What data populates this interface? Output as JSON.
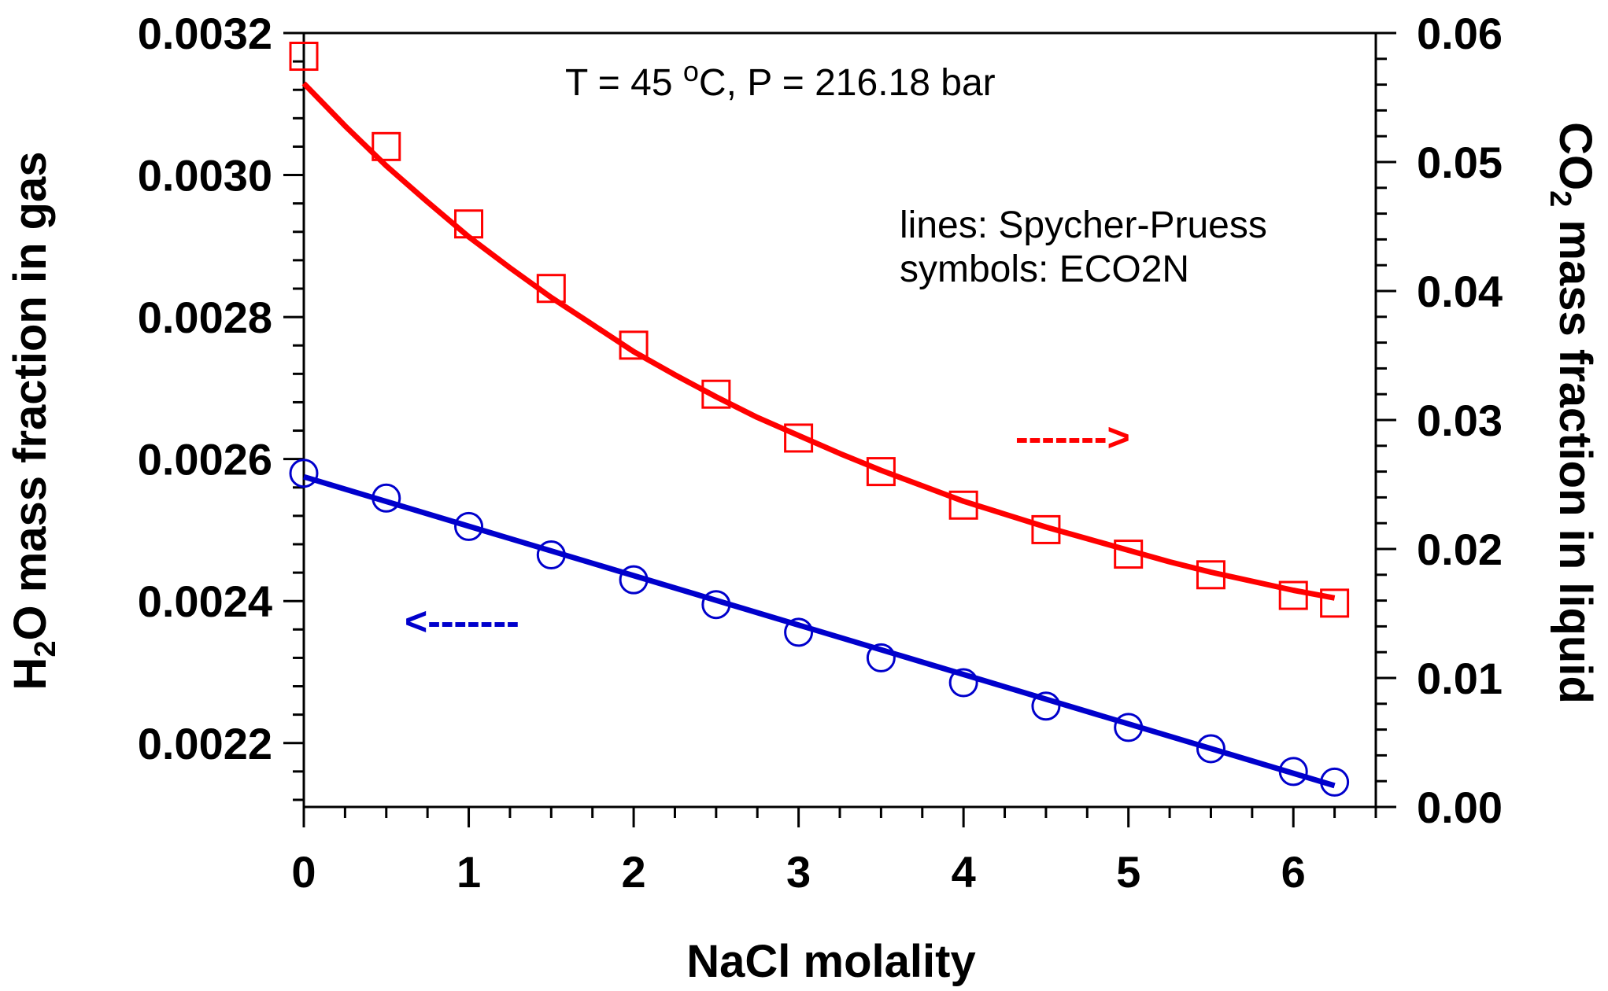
{
  "chart_data": {
    "type": "line",
    "xlabel": "NaCl molality",
    "xlim": [
      0,
      6.5
    ],
    "xticks": [
      "0",
      "1",
      "2",
      "3",
      "4",
      "5",
      "6"
    ],
    "ylabel_left": {
      "pre": "H",
      "sub": "2",
      "post": "O mass fraction in gas"
    },
    "ylim_left": [
      0.00211,
      0.0032
    ],
    "yticks_left": [
      "0.0022",
      "0.0024",
      "0.0026",
      "0.0028",
      "0.0030",
      "0.0032"
    ],
    "ylabel_right": {
      "pre": "CO",
      "sub": "2",
      "post": " mass fraction in liquid"
    },
    "ylim_right": [
      0.0,
      0.06
    ],
    "yticks_right": [
      "0.00",
      "0.01",
      "0.02",
      "0.03",
      "0.04",
      "0.05",
      "0.06"
    ],
    "annotation": {
      "pre": "T = 45 ",
      "sup": "o",
      "post": "C, P = 216.18 bar"
    },
    "legend_note": [
      "lines: Spycher-Pruess",
      "symbols: ECO2N"
    ],
    "arrows": {
      "right": "------->",
      "left": "<-------"
    },
    "series": [
      {
        "axis": "right",
        "color": "#ff0000",
        "marker": "square",
        "line_x": [
          0,
          0.25,
          0.5,
          0.75,
          1,
          1.25,
          1.5,
          1.75,
          2,
          2.25,
          2.5,
          2.75,
          3,
          3.25,
          3.5,
          3.75,
          4,
          4.25,
          4.5,
          4.75,
          5,
          5.25,
          5.5,
          5.75,
          6,
          6.25
        ],
        "line_y": [
          0.0561,
          0.0528,
          0.0497,
          0.0469,
          0.0442,
          0.0418,
          0.0395,
          0.0374,
          0.0353,
          0.0335,
          0.0318,
          0.0302,
          0.0288,
          0.0274,
          0.0261,
          0.0249,
          0.0237,
          0.0227,
          0.0217,
          0.0208,
          0.0199,
          0.019,
          0.0182,
          0.0175,
          0.0168,
          0.0162
        ],
        "points_x": [
          0,
          0.5,
          1,
          1.5,
          2,
          2.5,
          3,
          3.5,
          4,
          4.5,
          5,
          5.5,
          6,
          6.25
        ],
        "points_y": [
          0.0582,
          0.0512,
          0.0452,
          0.0402,
          0.0358,
          0.032,
          0.0286,
          0.026,
          0.0234,
          0.0215,
          0.0196,
          0.018,
          0.0164,
          0.0158
        ]
      },
      {
        "axis": "left",
        "color": "#0000cc",
        "marker": "circle",
        "line_x": [
          0,
          6.25
        ],
        "line_y": [
          0.002575,
          0.00214
        ],
        "points_x": [
          0,
          0.5,
          1,
          1.5,
          2,
          2.5,
          3,
          3.5,
          4,
          4.5,
          5,
          5.5,
          6,
          6.25
        ],
        "points_y": [
          0.00258,
          0.002545,
          0.002505,
          0.002465,
          0.00243,
          0.002395,
          0.002356,
          0.00232,
          0.002285,
          0.002252,
          0.002222,
          0.002192,
          0.00216,
          0.002145
        ]
      }
    ]
  }
}
